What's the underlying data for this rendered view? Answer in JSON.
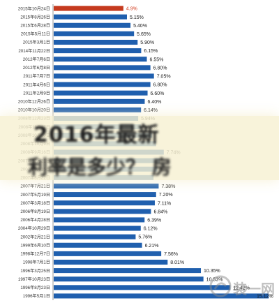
{
  "chart_data": {
    "type": "bar",
    "orientation": "horizontal",
    "categories": [
      "2015年10月24日",
      "2015年8月26日",
      "2015年6月28日",
      "2015年5月11日",
      "2015年3月1日",
      "2014年11月22日",
      "2012年7月6日",
      "2012年6月8日",
      "2011年7月7日",
      "2011年4月6日",
      "2011年2月9日",
      "2010年12月26日",
      "2010年10月20日",
      "2008年12月23日",
      "2008年11月27日",
      "2008年10月30日",
      "2008年10月9日",
      "2008年9月16日",
      "2007年12月21日",
      "2007年9月15日",
      "2007年8月22日",
      "2007年7月21日",
      "2007年5月19日",
      "2007年3月18日",
      "2006年8月19日",
      "2006年4月28日",
      "2004年10月29日",
      "2002年2月21日",
      "1999年6月10日",
      "1998年12月7日",
      "1998年7月1日",
      "1996年3月25日",
      "1997年10月23日",
      "1996年8月23日",
      "1996年5月1日"
    ],
    "values": [
      4.9,
      5.15,
      5.4,
      5.65,
      5.9,
      6.15,
      6.55,
      6.8,
      7.05,
      6.8,
      6.6,
      6.4,
      6.14,
      5.94,
      6.12,
      6.93,
      7.2,
      7.74,
      7.47,
      7.29,
      7.02,
      7.38,
      7.2,
      7.11,
      6.84,
      6.39,
      6.12,
      5.76,
      6.21,
      7.56,
      8.01,
      10.35,
      10.53,
      12.42,
      15.12
    ],
    "data_labels": [
      "4.9%",
      "5.15%",
      "5.40%",
      "5.65%",
      "5.90%",
      "6.15%",
      "6.55%",
      "6.80%",
      "7.05%",
      "6.80%",
      "6.60%",
      "6.40%",
      "6.14%",
      "5.94%",
      "6.12%",
      "",
      "",
      "7.74%",
      "",
      "",
      "",
      "7.38%",
      "7.20%",
      "7.11%",
      "6.84%",
      "6.39%",
      "6.12%",
      "5.76%",
      "6.21%",
      "7.56%",
      "8.01%",
      "10.35%",
      "10.53%",
      "12.42%",
      "15.12%"
    ],
    "highlight_index": 0,
    "xlim": [
      0,
      15.5
    ],
    "grid": false,
    "colors": {
      "bar": "#1f5fae",
      "highlight_bar": "#c53a1e",
      "highlight_label": "#d23b1e",
      "label": "#1a1a1a"
    }
  },
  "overlay": {
    "line1": "2016年最新",
    "line2": "利率是多少？ 房"
  },
  "watermark": {
    "text": "装一网"
  }
}
